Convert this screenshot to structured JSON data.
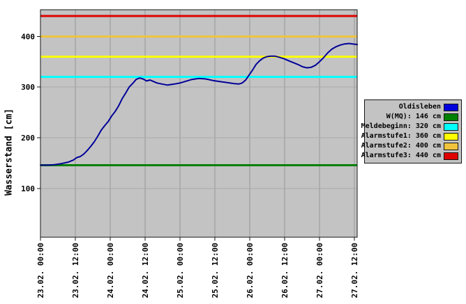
{
  "chart_data": {
    "type": "line",
    "ylabel": "Wasserstand [cm]",
    "xlabel": "",
    "station": "Oldisleben",
    "unit": "cm",
    "ylim": [
      0,
      452
    ],
    "y_ticks": [
      100,
      200,
      300,
      400
    ],
    "x_tick_labels": [
      "23.02. 00:00",
      "23.02. 12:00",
      "24.02. 00:00",
      "24.02. 12:00",
      "25.02. 00:00",
      "25.02. 12:00",
      "26.02. 00:00",
      "26.02. 12:00",
      "27.02. 00:00",
      "27.02. 12:00"
    ],
    "x_tick_interval_hours": 12,
    "x_range_hours": [
      0,
      109
    ],
    "grid": true,
    "plot_background": "#c3c3c3",
    "gridline_color": "#969696",
    "reference_lines": [
      {
        "name": "W(MQ)",
        "value": 146,
        "color": "#008000"
      },
      {
        "name": "Meldebeginn",
        "value": 320,
        "color": "#00ffff"
      },
      {
        "name": "Alarmstufe1",
        "value": 360,
        "color": "#ffff00"
      },
      {
        "name": "Alarmstufe2",
        "value": 400,
        "color": "#efc43c"
      },
      {
        "name": "Alarmstufe3",
        "value": 440,
        "color": "#df0000"
      }
    ],
    "series": [
      {
        "name": "Oldisleben",
        "color": "#000099",
        "points_hours_cm": [
          [
            0,
            146
          ],
          [
            2.4,
            146
          ],
          [
            4.8,
            147
          ],
          [
            7.2,
            149
          ],
          [
            9.6,
            152
          ],
          [
            11.3,
            156
          ],
          [
            12.5,
            161
          ],
          [
            13.7,
            163
          ],
          [
            14.9,
            168
          ],
          [
            16.1,
            175
          ],
          [
            17.3,
            183
          ],
          [
            18.5,
            192
          ],
          [
            19.7,
            203
          ],
          [
            20.9,
            215
          ],
          [
            22.1,
            224
          ],
          [
            23.3,
            232
          ],
          [
            24.5,
            243
          ],
          [
            25.7,
            252
          ],
          [
            26.9,
            263
          ],
          [
            28.1,
            277
          ],
          [
            29.3,
            288
          ],
          [
            30.5,
            300
          ],
          [
            31.7,
            307
          ],
          [
            32.9,
            315
          ],
          [
            34.1,
            318
          ],
          [
            35.3,
            316
          ],
          [
            36.5,
            312
          ],
          [
            37.7,
            314
          ],
          [
            38.9,
            311
          ],
          [
            40.1,
            308
          ],
          [
            41.8,
            306
          ],
          [
            43.7,
            304
          ],
          [
            46.1,
            306
          ],
          [
            48,
            308
          ],
          [
            49.7,
            311
          ],
          [
            52.1,
            315
          ],
          [
            54.5,
            317
          ],
          [
            56.9,
            316
          ],
          [
            59.3,
            313
          ],
          [
            61.7,
            311
          ],
          [
            64.1,
            309
          ],
          [
            66.5,
            307
          ],
          [
            68.2,
            306
          ],
          [
            69.4,
            308
          ],
          [
            70.6,
            314
          ],
          [
            71.8,
            324
          ],
          [
            73,
            334
          ],
          [
            74.2,
            345
          ],
          [
            75.4,
            352
          ],
          [
            76.6,
            357
          ],
          [
            77.8,
            360
          ],
          [
            79.2,
            361
          ],
          [
            80.6,
            361
          ],
          [
            82.1,
            359
          ],
          [
            83.8,
            356
          ],
          [
            85.4,
            352
          ],
          [
            87.1,
            348
          ],
          [
            88.8,
            344
          ],
          [
            90.2,
            340
          ],
          [
            91.7,
            338
          ],
          [
            93.1,
            339
          ],
          [
            94.6,
            343
          ],
          [
            96,
            350
          ],
          [
            97.4,
            358
          ],
          [
            98.9,
            368
          ],
          [
            100.3,
            375
          ],
          [
            101.8,
            380
          ],
          [
            103.2,
            383
          ],
          [
            104.6,
            385
          ],
          [
            106.1,
            386
          ],
          [
            107.5,
            385
          ],
          [
            109,
            384
          ]
        ]
      }
    ],
    "legend_position": "right"
  },
  "legend": {
    "items": [
      {
        "label": "Oldisleben",
        "color": "#0000dd"
      },
      {
        "label": "W(MQ): 146 cm",
        "color": "#008000"
      },
      {
        "label": "Meldebeginn: 320 cm",
        "color": "#00ffff"
      },
      {
        "label": "Alarmstufe1: 360 cm",
        "color": "#ffff00"
      },
      {
        "label": "Alarmstufe2: 400 cm",
        "color": "#efc43c"
      },
      {
        "label": "Alarmstufe3: 440 cm",
        "color": "#df0000"
      }
    ]
  }
}
